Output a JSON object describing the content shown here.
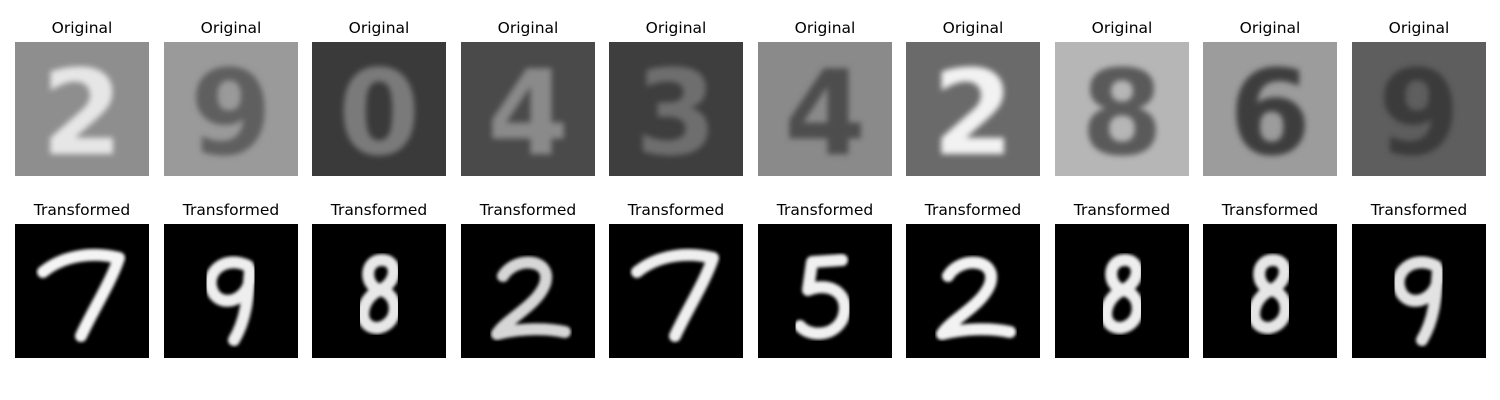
{
  "rows": [
    {
      "title": "Original",
      "style": "original",
      "panels": [
        {
          "digit": "2",
          "label": "Original",
          "background": "#8e8e8e",
          "ink": "#e6e6e6"
        },
        {
          "digit": "9",
          "label": "Original",
          "background": "#9a9a9a",
          "ink": "#5e5e5e"
        },
        {
          "digit": "0",
          "label": "Original",
          "background": "#3a3a3a",
          "ink": "#7a7a7a"
        },
        {
          "digit": "4",
          "label": "Original",
          "background": "#4a4a4a",
          "ink": "#8a8a8a"
        },
        {
          "digit": "3",
          "label": "Original",
          "background": "#3e3e3e",
          "ink": "#6e6e6e"
        },
        {
          "digit": "4",
          "label": "Original",
          "background": "#8a8a8a",
          "ink": "#4e4e4e"
        },
        {
          "digit": "2",
          "label": "Original",
          "background": "#6a6a6a",
          "ink": "#f2f2f2"
        },
        {
          "digit": "8",
          "label": "Original",
          "background": "#b6b6b6",
          "ink": "#5a5a5a"
        },
        {
          "digit": "6",
          "label": "Original",
          "background": "#9c9c9c",
          "ink": "#3e3e3e"
        },
        {
          "digit": "9",
          "label": "Original",
          "background": "#5e5e5e",
          "ink": "#3a3a3a"
        }
      ]
    },
    {
      "title": "Transformed",
      "style": "transformed",
      "panels": [
        {
          "digit": "7",
          "label": "Transformed",
          "background": "#000000",
          "ink": "#f4f4f4"
        },
        {
          "digit": "9",
          "label": "Transformed",
          "background": "#000000",
          "ink": "#eeeeee"
        },
        {
          "digit": "8",
          "label": "Transformed",
          "background": "#000000",
          "ink": "#e8e8e8"
        },
        {
          "digit": "2",
          "label": "Transformed",
          "background": "#000000",
          "ink": "#d6d6d6"
        },
        {
          "digit": "7",
          "label": "Transformed",
          "background": "#000000",
          "ink": "#efefef"
        },
        {
          "digit": "5",
          "label": "Transformed",
          "background": "#000000",
          "ink": "#f0f0f0"
        },
        {
          "digit": "2",
          "label": "Transformed",
          "background": "#000000",
          "ink": "#f2f2f2"
        },
        {
          "digit": "8",
          "label": "Transformed",
          "background": "#000000",
          "ink": "#eeeeee"
        },
        {
          "digit": "8",
          "label": "Transformed",
          "background": "#000000",
          "ink": "#e6e6e6"
        },
        {
          "digit": "9",
          "label": "Transformed",
          "background": "#000000",
          "ink": "#e2e2e2"
        }
      ]
    }
  ]
}
